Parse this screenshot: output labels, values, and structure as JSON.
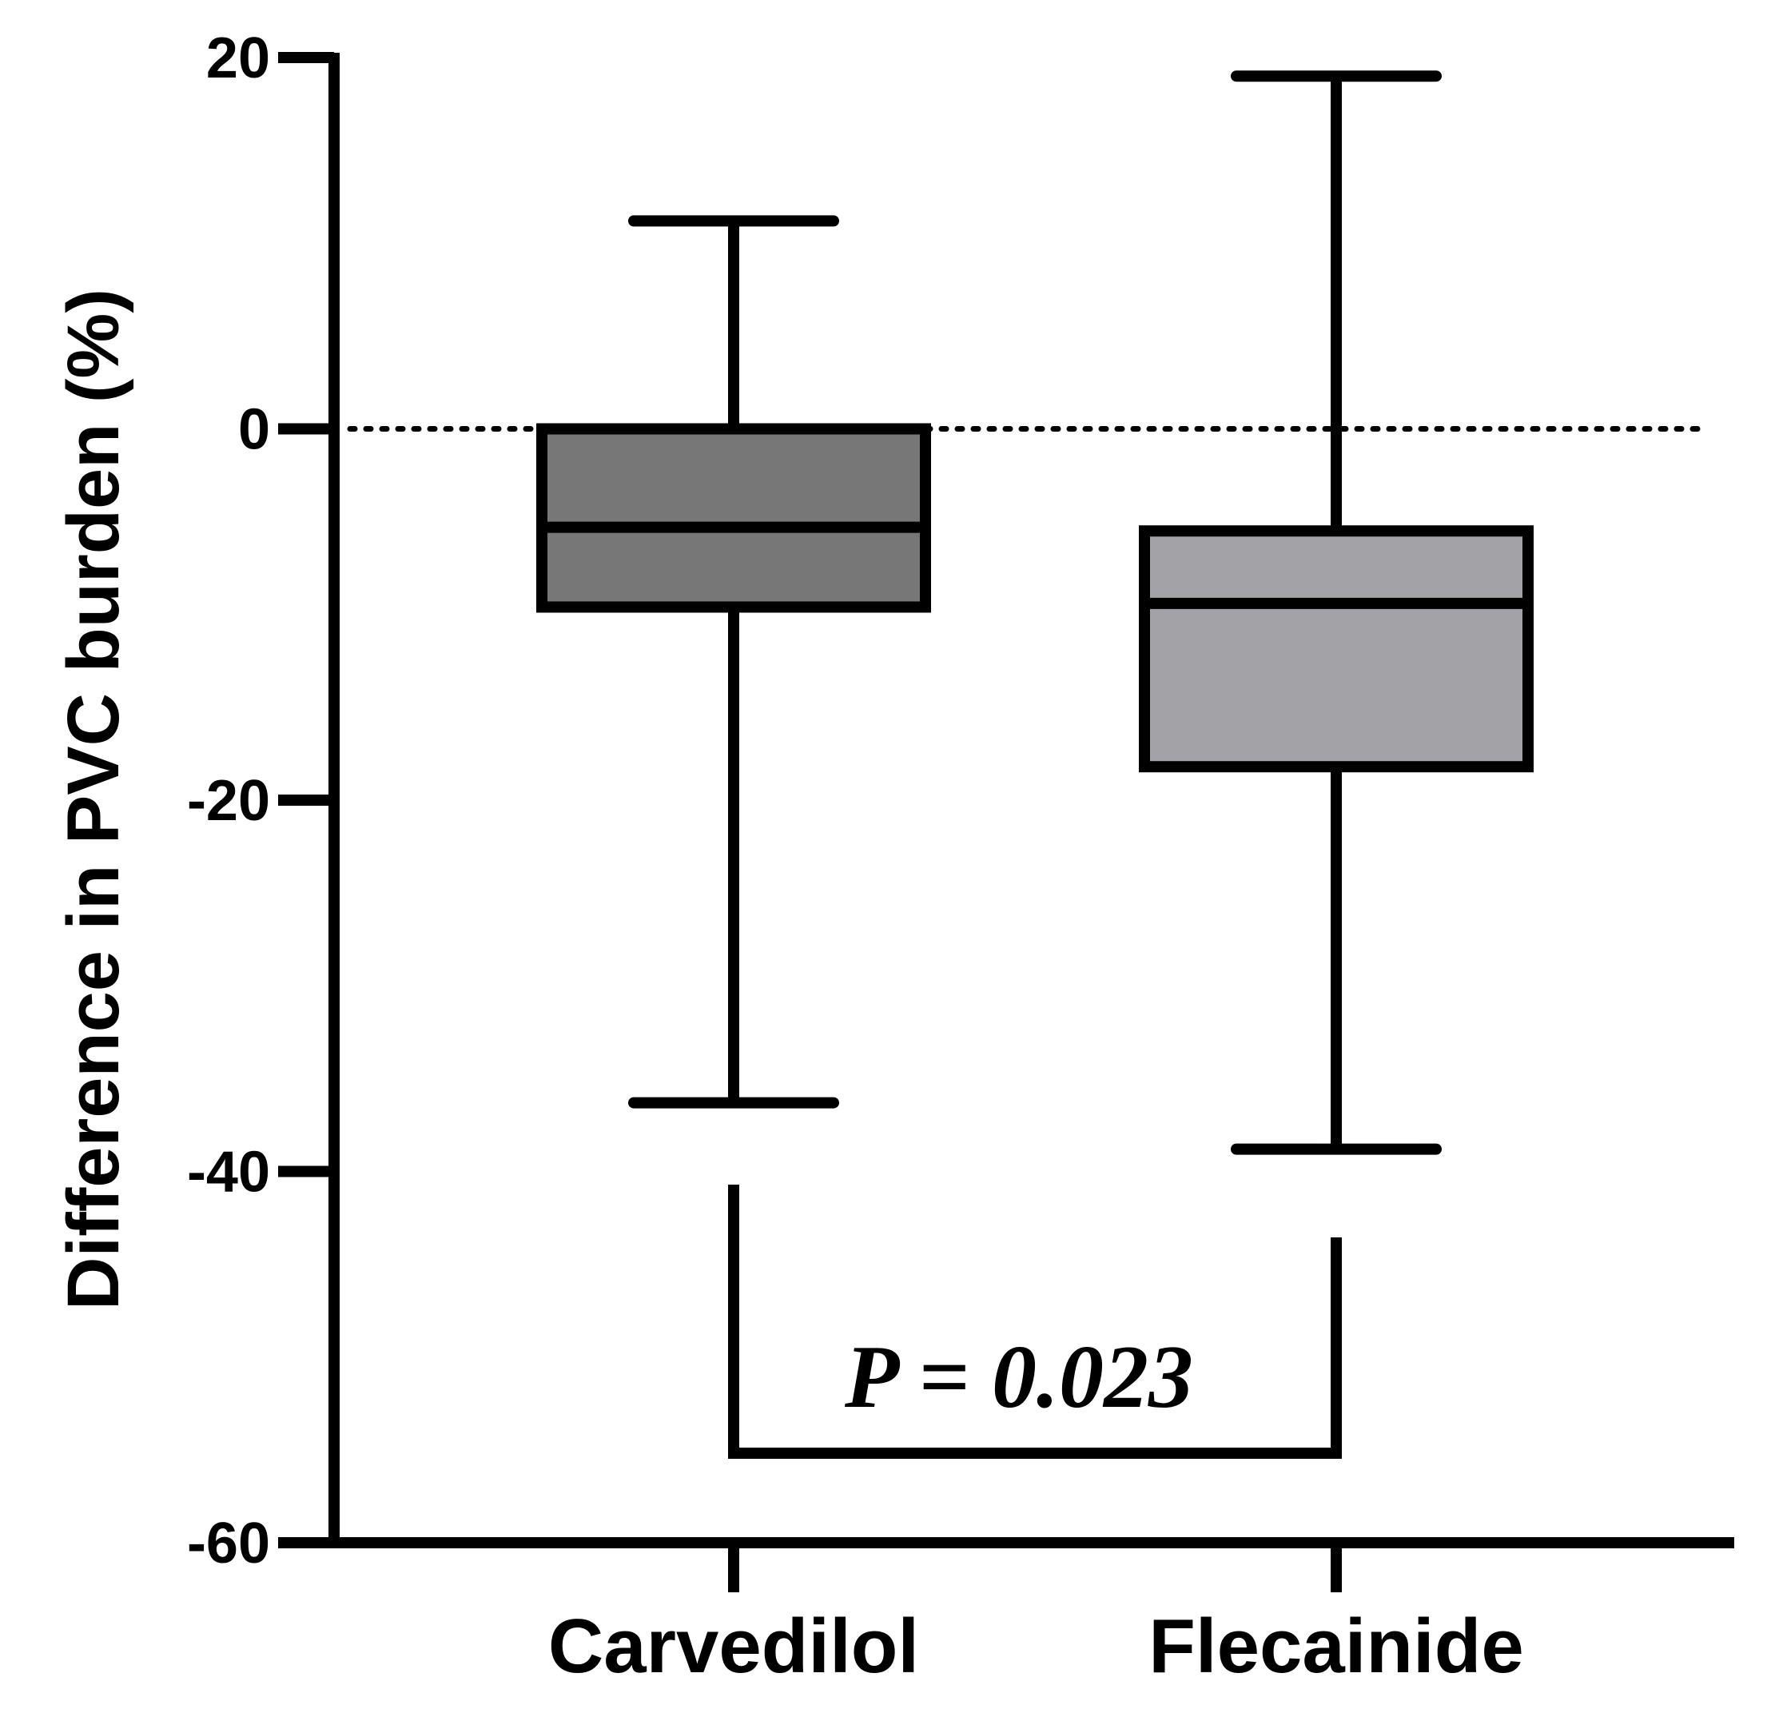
{
  "chart_data": {
    "type": "box",
    "ylabel": "Difference in PVC burden (%)",
    "xlabel": "",
    "ylim": [
      -60,
      20
    ],
    "yticks": [
      "20",
      "0",
      "-20",
      "-40",
      "-60"
    ],
    "reference_line": {
      "y": 0,
      "style": "dotted"
    },
    "categories": [
      "Carvedilol",
      "Flecainide"
    ],
    "series": [
      {
        "category": "Carvedilol",
        "whisker_max": 11.2,
        "q3": 0,
        "median": -5.3,
        "q1": -9.6,
        "whisker_min": -36.3,
        "color": "#777777"
      },
      {
        "category": "Flecainide",
        "whisker_max": 19,
        "q3": -5.5,
        "median": -9.4,
        "q1": -18.2,
        "whisker_min": -38.8,
        "color": "#a3a3a7"
      }
    ],
    "annotation": {
      "text": "P = 0.023",
      "between": [
        "Carvedilol",
        "Flecainide"
      ]
    }
  }
}
